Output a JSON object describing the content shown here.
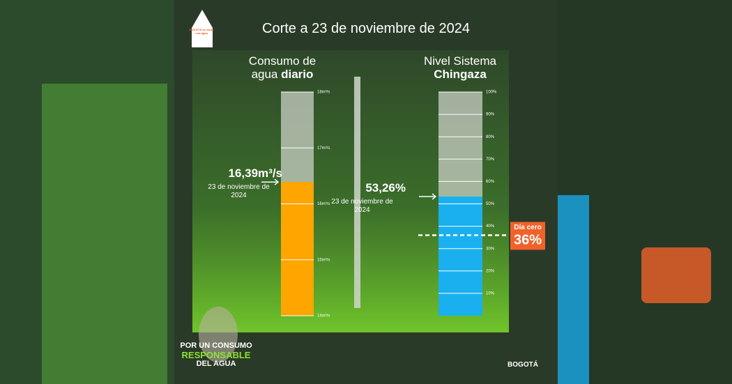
{
  "header": {
    "title": "Corte a 23 de noviembre de 2024",
    "logo": "BOGOTÁ se cuida con agua"
  },
  "chart_data": [
    {
      "type": "bar",
      "title": "Consumo de agua",
      "title_emphasis": "diario",
      "values": [
        16.39
      ],
      "value_labels": [
        "16,39m³/s"
      ],
      "annotation": "23 de noviembre de 2024",
      "color": "#ffa500",
      "ylim": [
        14,
        18
      ],
      "yticks": [
        {
          "value": 14,
          "label": "14m³/s"
        },
        {
          "value": 15,
          "label": "15m³/s"
        },
        {
          "value": 16,
          "label": "16m³/s"
        },
        {
          "value": 17,
          "label": "17m³/s"
        },
        {
          "value": 18,
          "label": "18m³/s"
        }
      ]
    },
    {
      "type": "bar",
      "title": "Nivel Sistema",
      "title_emphasis": "Chingaza",
      "values": [
        53.26
      ],
      "value_labels": [
        "53,26%"
      ],
      "annotation": "23 de noviembre de 2024",
      "color": "#1ab0f0",
      "ylim": [
        0,
        100
      ],
      "yticks": [
        {
          "value": 10,
          "label": "10%"
        },
        {
          "value": 20,
          "label": "20%"
        },
        {
          "value": 30,
          "label": "30%"
        },
        {
          "value": 40,
          "label": "40%"
        },
        {
          "value": 50,
          "label": "50%"
        },
        {
          "value": 60,
          "label": "60%"
        },
        {
          "value": 70,
          "label": "70%"
        },
        {
          "value": 80,
          "label": "80%"
        },
        {
          "value": 90,
          "label": "90%"
        },
        {
          "value": 100,
          "label": "100%"
        }
      ],
      "threshold": {
        "label": "Día cero",
        "value": 36,
        "value_label": "36%"
      }
    }
  ],
  "footer": {
    "slogan": [
      "POR UN CONSUMO",
      "RESPONSABLE",
      "DEL AGUA"
    ],
    "brand": "BOGOTÁ"
  }
}
